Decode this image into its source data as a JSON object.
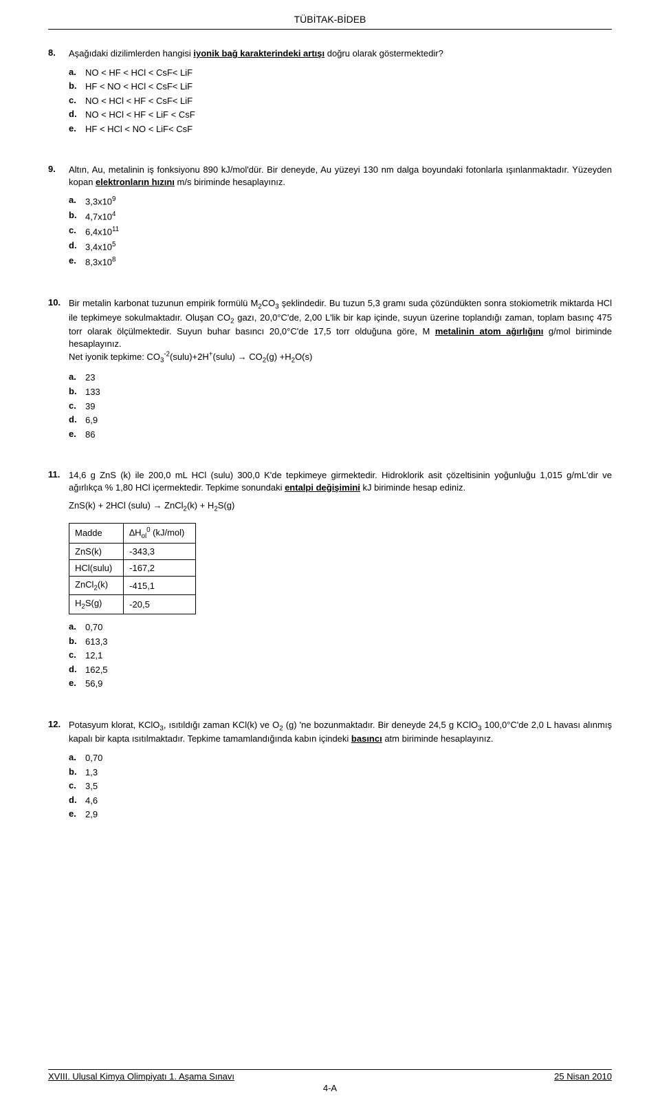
{
  "header": {
    "title": "TÜBİTAK-BİDEB"
  },
  "q8": {
    "num": "8.",
    "text_pre": "Aşağıdaki dizilimlerden hangisi ",
    "text_bold": "iyonik bağ karakterindeki artışı",
    "text_post": " doğru olarak göstermektedir?",
    "a": "NO < HF < HCl < CsF< LiF",
    "b": "HF < NO < HCl < CsF< LiF",
    "c": "NO < HCl < HF < CsF< LiF",
    "d": "NO < HCl < HF < LiF < CsF",
    "e": "HF < HCl < NO < LiF< CsF"
  },
  "q9": {
    "num": "9.",
    "text_pre": "Altın, Au, metalinin iş fonksiyonu 890 kJ/mol'dür. Bir deneyde, Au yüzeyi 130 nm dalga boyundaki fotonlarla ışınlanmaktadır. Yüzeyden kopan ",
    "text_bold": "elektronların hızını",
    "text_post": " m/s biriminde hesaplayınız.",
    "a_base": "3,3x10",
    "a_exp": "9",
    "b_base": "4,7x10",
    "b_exp": "4",
    "c_base": "6,4x10",
    "c_exp": "11",
    "d_base": "3,4x10",
    "d_exp": "5",
    "e_base": "8,3x10",
    "e_exp": "8"
  },
  "q10": {
    "num": "10.",
    "text_pre": "Bir metalin karbonat tuzunun empirik formülü M",
    "text_sub1": "2",
    "text_mid1": "CO",
    "text_sub2": "3",
    "text_mid2": " şeklindedir. Bu tuzun 5,3 gramı suda çözündükten sonra stokiometrik miktarda HCl ile tepkimeye sokulmaktadır. Oluşan CO",
    "text_sub3": "2",
    "text_mid3": " gazı, 20,0°C'de, 2,00 L'lik bir kap içinde, suyun üzerine toplandığı zaman, toplam basınç 475 torr olarak ölçülmektedir. Suyun buhar basıncı 20,0°C'de 17,5 torr olduğuna göre, M ",
    "text_bold": "metalinin atom ağırlığını",
    "text_post": " g/mol biriminde hesaplayınız.",
    "net_label": "Net iyonik tepkime: CO",
    "a": "23",
    "b": "133",
    "c": "39",
    "d": "6,9",
    "e": "86"
  },
  "q11": {
    "num": "11.",
    "text_pre": "14,6 g ZnS (k) ile 200,0 mL HCl (sulu) 300,0 K'de tepkimeye girmektedir. Hidroklorik asit çözeltisinin yoğunluğu 1,015 g/mL'dir  ve ağırlıkça  % 1,80 HCl içermektedir. Tepkime sonundaki ",
    "text_bold": "entalpi değişimini",
    "text_post": " kJ biriminde hesap ediniz.",
    "eqn_pre": "ZnS(k) + 2HCl (sulu) → ZnCl",
    "table": {
      "h1": "Madde",
      "h2_pre": "∆H",
      "h2_sub": "ol",
      "h2_sup": "0",
      "h2_post": " (kJ/mol)",
      "r1c1": "ZnS(k)",
      "r1c2": "-343,3",
      "r2c1": "HCl(sulu)",
      "r2c2": "-167,2",
      "r3c1_pre": "ZnCl",
      "r3c1_sub": "2",
      "r3c1_post": "(k)",
      "r3c2": "-415,1",
      "r4c1_pre": "H",
      "r4c1_sub": "2",
      "r4c1_post": "S(g)",
      "r4c2": "-20,5"
    },
    "a": "0,70",
    "b": "613,3",
    "c": "12,1",
    "d": "162,5",
    "e": "56,9"
  },
  "q12": {
    "num": "12.",
    "text_pre": "Potasyum klorat, KClO",
    "text_sub1": "3",
    "text_mid1": ", ısıtıldığı zaman KCl(k) ve O",
    "text_sub2": "2",
    "text_mid2": " (g) 'ne bozunmaktadır. Bir deneyde 24,5 g KClO",
    "text_sub3": "3",
    "text_mid3": " 100,0°C'de 2,0 L havası alınmış kapalı bir kapta ısıtılmaktadır. Tepkime tamamlandığında kabın içindeki ",
    "text_bold": "basıncı",
    "text_post": " atm biriminde hesaplayınız.",
    "a": "0,70",
    "b": "1,3",
    "c": "3,5",
    "d": "4,6",
    "e": "2,9"
  },
  "footer": {
    "left": "XVIII. Ulusal Kimya Olimpiyatı 1. Aşama Sınavı",
    "right": "25 Nisan 2010",
    "page": "4-A"
  }
}
